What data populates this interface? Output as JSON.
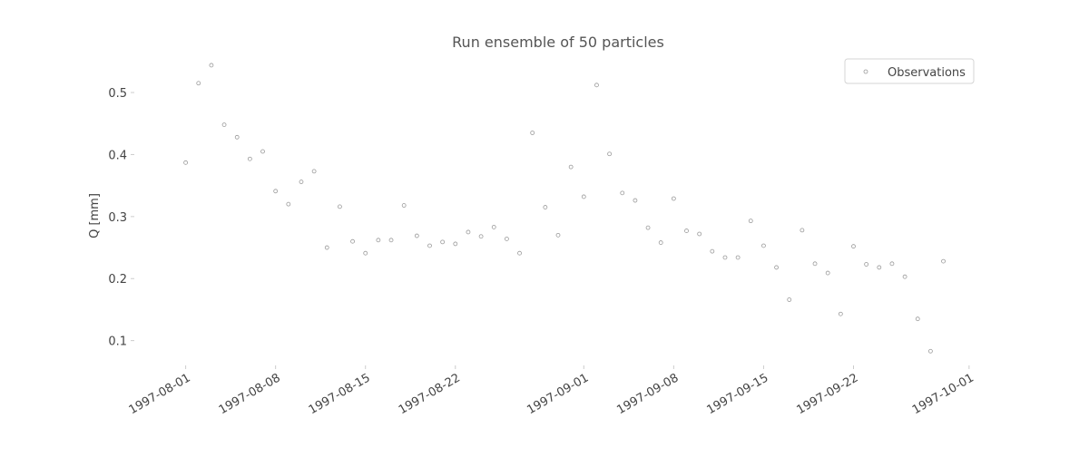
{
  "chart_data": {
    "type": "scatter",
    "title": "Run ensemble of 50 particles",
    "xlabel": "",
    "ylabel": "Q [mm]",
    "xlim": [
      "1997-07-28",
      "1997-10-02"
    ],
    "ylim": [
      0.06,
      0.56
    ],
    "grid": false,
    "legend_position": "top-right",
    "x_ticks": [
      "1997-08-01",
      "1997-08-08",
      "1997-08-15",
      "1997-08-22",
      "1997-09-01",
      "1997-09-08",
      "1997-09-15",
      "1997-09-22",
      "1997-10-01"
    ],
    "y_ticks": [
      0.1,
      0.2,
      0.3,
      0.4,
      0.5
    ],
    "series": [
      {
        "name": "Observations",
        "color": "#999999",
        "x": [
          "1997-08-01",
          "1997-08-02",
          "1997-08-03",
          "1997-08-04",
          "1997-08-05",
          "1997-08-06",
          "1997-08-07",
          "1997-08-08",
          "1997-08-09",
          "1997-08-10",
          "1997-08-11",
          "1997-08-12",
          "1997-08-13",
          "1997-08-14",
          "1997-08-15",
          "1997-08-16",
          "1997-08-17",
          "1997-08-18",
          "1997-08-19",
          "1997-08-20",
          "1997-08-21",
          "1997-08-22",
          "1997-08-23",
          "1997-08-24",
          "1997-08-25",
          "1997-08-26",
          "1997-08-27",
          "1997-08-28",
          "1997-08-29",
          "1997-08-30",
          "1997-08-31",
          "1997-09-01",
          "1997-09-02",
          "1997-09-03",
          "1997-09-04",
          "1997-09-05",
          "1997-09-06",
          "1997-09-07",
          "1997-09-08",
          "1997-09-09",
          "1997-09-10",
          "1997-09-11",
          "1997-09-12",
          "1997-09-13",
          "1997-09-14",
          "1997-09-15",
          "1997-09-16",
          "1997-09-17",
          "1997-09-18",
          "1997-09-19",
          "1997-09-20",
          "1997-09-21",
          "1997-09-22",
          "1997-09-23",
          "1997-09-24",
          "1997-09-25",
          "1997-09-26",
          "1997-09-27",
          "1997-09-28",
          "1997-09-29"
        ],
        "y": [
          0.387,
          0.515,
          0.544,
          0.448,
          0.428,
          0.393,
          0.405,
          0.341,
          0.32,
          0.356,
          0.373,
          0.25,
          0.316,
          0.26,
          0.241,
          0.262,
          0.262,
          0.318,
          0.269,
          0.253,
          0.259,
          0.256,
          0.275,
          0.268,
          0.283,
          0.264,
          0.241,
          0.435,
          0.315,
          0.27,
          0.38,
          0.332,
          0.512,
          0.401,
          0.338,
          0.326,
          0.282,
          0.258,
          0.329,
          0.277,
          0.272,
          0.244,
          0.234,
          0.234,
          0.293,
          0.253,
          0.218,
          0.166,
          0.278,
          0.224,
          0.209,
          0.143,
          0.252,
          0.223,
          0.218,
          0.224,
          0.203,
          0.135,
          0.083,
          0.228
        ]
      }
    ]
  }
}
